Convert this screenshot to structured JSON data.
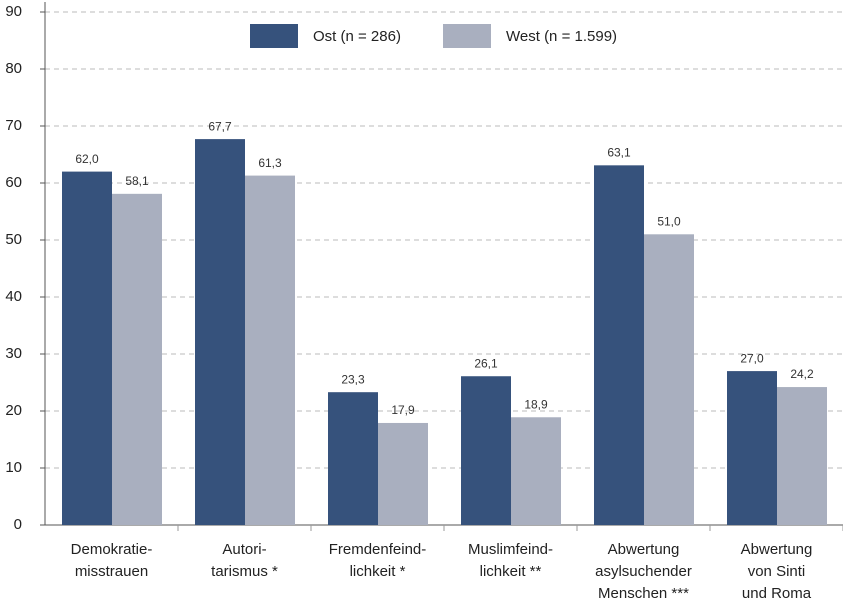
{
  "chart_data": {
    "type": "bar",
    "categories": [
      "Demokratie-\nmisstrauen",
      "Autori-\ntarismus *",
      "Fremdenfeind-\nlichkeit *",
      "Muslimfeind-\nlichkeit **",
      "Abwertung\nasylsuchender\nMenschen ***",
      "Abwertung\nvon Sinti\nund Roma"
    ],
    "series": [
      {
        "name": "Ost (n = 286)",
        "color": "#36527c",
        "values": [
          62.0,
          67.7,
          23.3,
          26.1,
          63.1,
          27.0
        ],
        "value_labels": [
          "62,0",
          "67,7",
          "23,3",
          "26,1",
          "63,1",
          "27,0"
        ]
      },
      {
        "name": "West (n = 1.599)",
        "color": "#a9afbf",
        "values": [
          58.1,
          61.3,
          17.9,
          18.9,
          51.0,
          24.2
        ],
        "value_labels": [
          "58,1",
          "61,3",
          "17,9",
          "18,9",
          "51,0",
          "24,2"
        ]
      }
    ],
    "ylim": [
      0,
      90
    ],
    "yticks": [
      0,
      10,
      20,
      30,
      40,
      50,
      60,
      70,
      80,
      90
    ],
    "grid": true,
    "legend": "top"
  }
}
